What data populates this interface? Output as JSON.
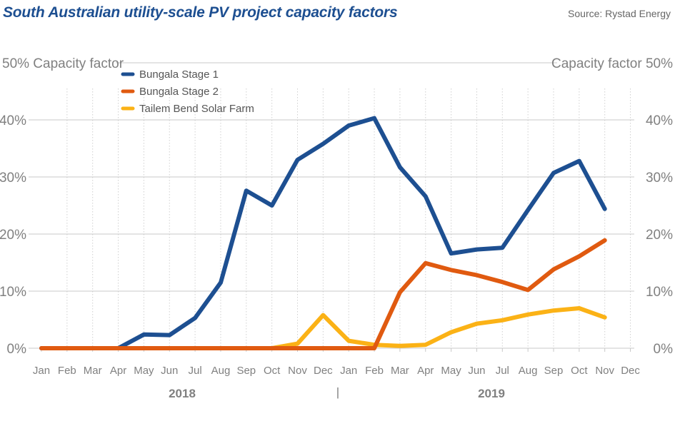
{
  "title": "South Australian utility-scale PV project capacity factors",
  "source": "Source: Rystad Energy",
  "colors": {
    "title": "#1d4f91",
    "grid": "#c8c8c8",
    "vgrid": "#d0d0d0",
    "axis_text": "#808080"
  },
  "chart_data": {
    "type": "line",
    "title": "South Australian utility-scale PV project capacity factors",
    "ylabel_left": "Capacity factor",
    "ylabel_right": "Capacity factor",
    "y_ticks": [
      "0%",
      "10%",
      "20%",
      "30%",
      "40%",
      "50%"
    ],
    "ylim": [
      0,
      50
    ],
    "categories": [
      "Jan",
      "Feb",
      "Mar",
      "Apr",
      "May",
      "Jun",
      "Jul",
      "Aug",
      "Sep",
      "Oct",
      "Nov",
      "Dec",
      "Jan",
      "Feb",
      "Mar",
      "Apr",
      "May",
      "Jun",
      "Jul",
      "Aug",
      "Sep",
      "Oct",
      "Nov",
      "Dec"
    ],
    "years": [
      {
        "label": "2018"
      },
      {
        "label": "2019"
      }
    ],
    "year_separator": "|",
    "grid": true,
    "legend_position": "top-left",
    "series": [
      {
        "name": "Bungala Stage 1",
        "color": "#1d4f91",
        "values": [
          0,
          0,
          0,
          0,
          2.4,
          2.3,
          5.3,
          11.5,
          27.6,
          25,
          33,
          35.8,
          39,
          40.3,
          31.7,
          26.6,
          16.6,
          17.3,
          17.6,
          24.2,
          30.7,
          32.8,
          24.4,
          null
        ]
      },
      {
        "name": "Bungala Stage 2",
        "color": "#e05a10",
        "values": [
          0,
          0,
          0,
          0,
          0,
          0,
          0,
          0,
          0,
          0,
          0,
          0,
          0,
          0,
          9.8,
          14.9,
          13.7,
          12.8,
          11.6,
          10.2,
          13.8,
          16.1,
          18.9,
          null
        ]
      },
      {
        "name": "Tailem Bend Solar Farm",
        "color": "#fbb216",
        "values": [
          null,
          null,
          null,
          null,
          null,
          null,
          null,
          null,
          null,
          0,
          0.8,
          5.8,
          1.3,
          0.6,
          0.4,
          0.6,
          2.8,
          4.3,
          4.9,
          5.9,
          6.6,
          7.0,
          5.4,
          null
        ]
      }
    ]
  }
}
